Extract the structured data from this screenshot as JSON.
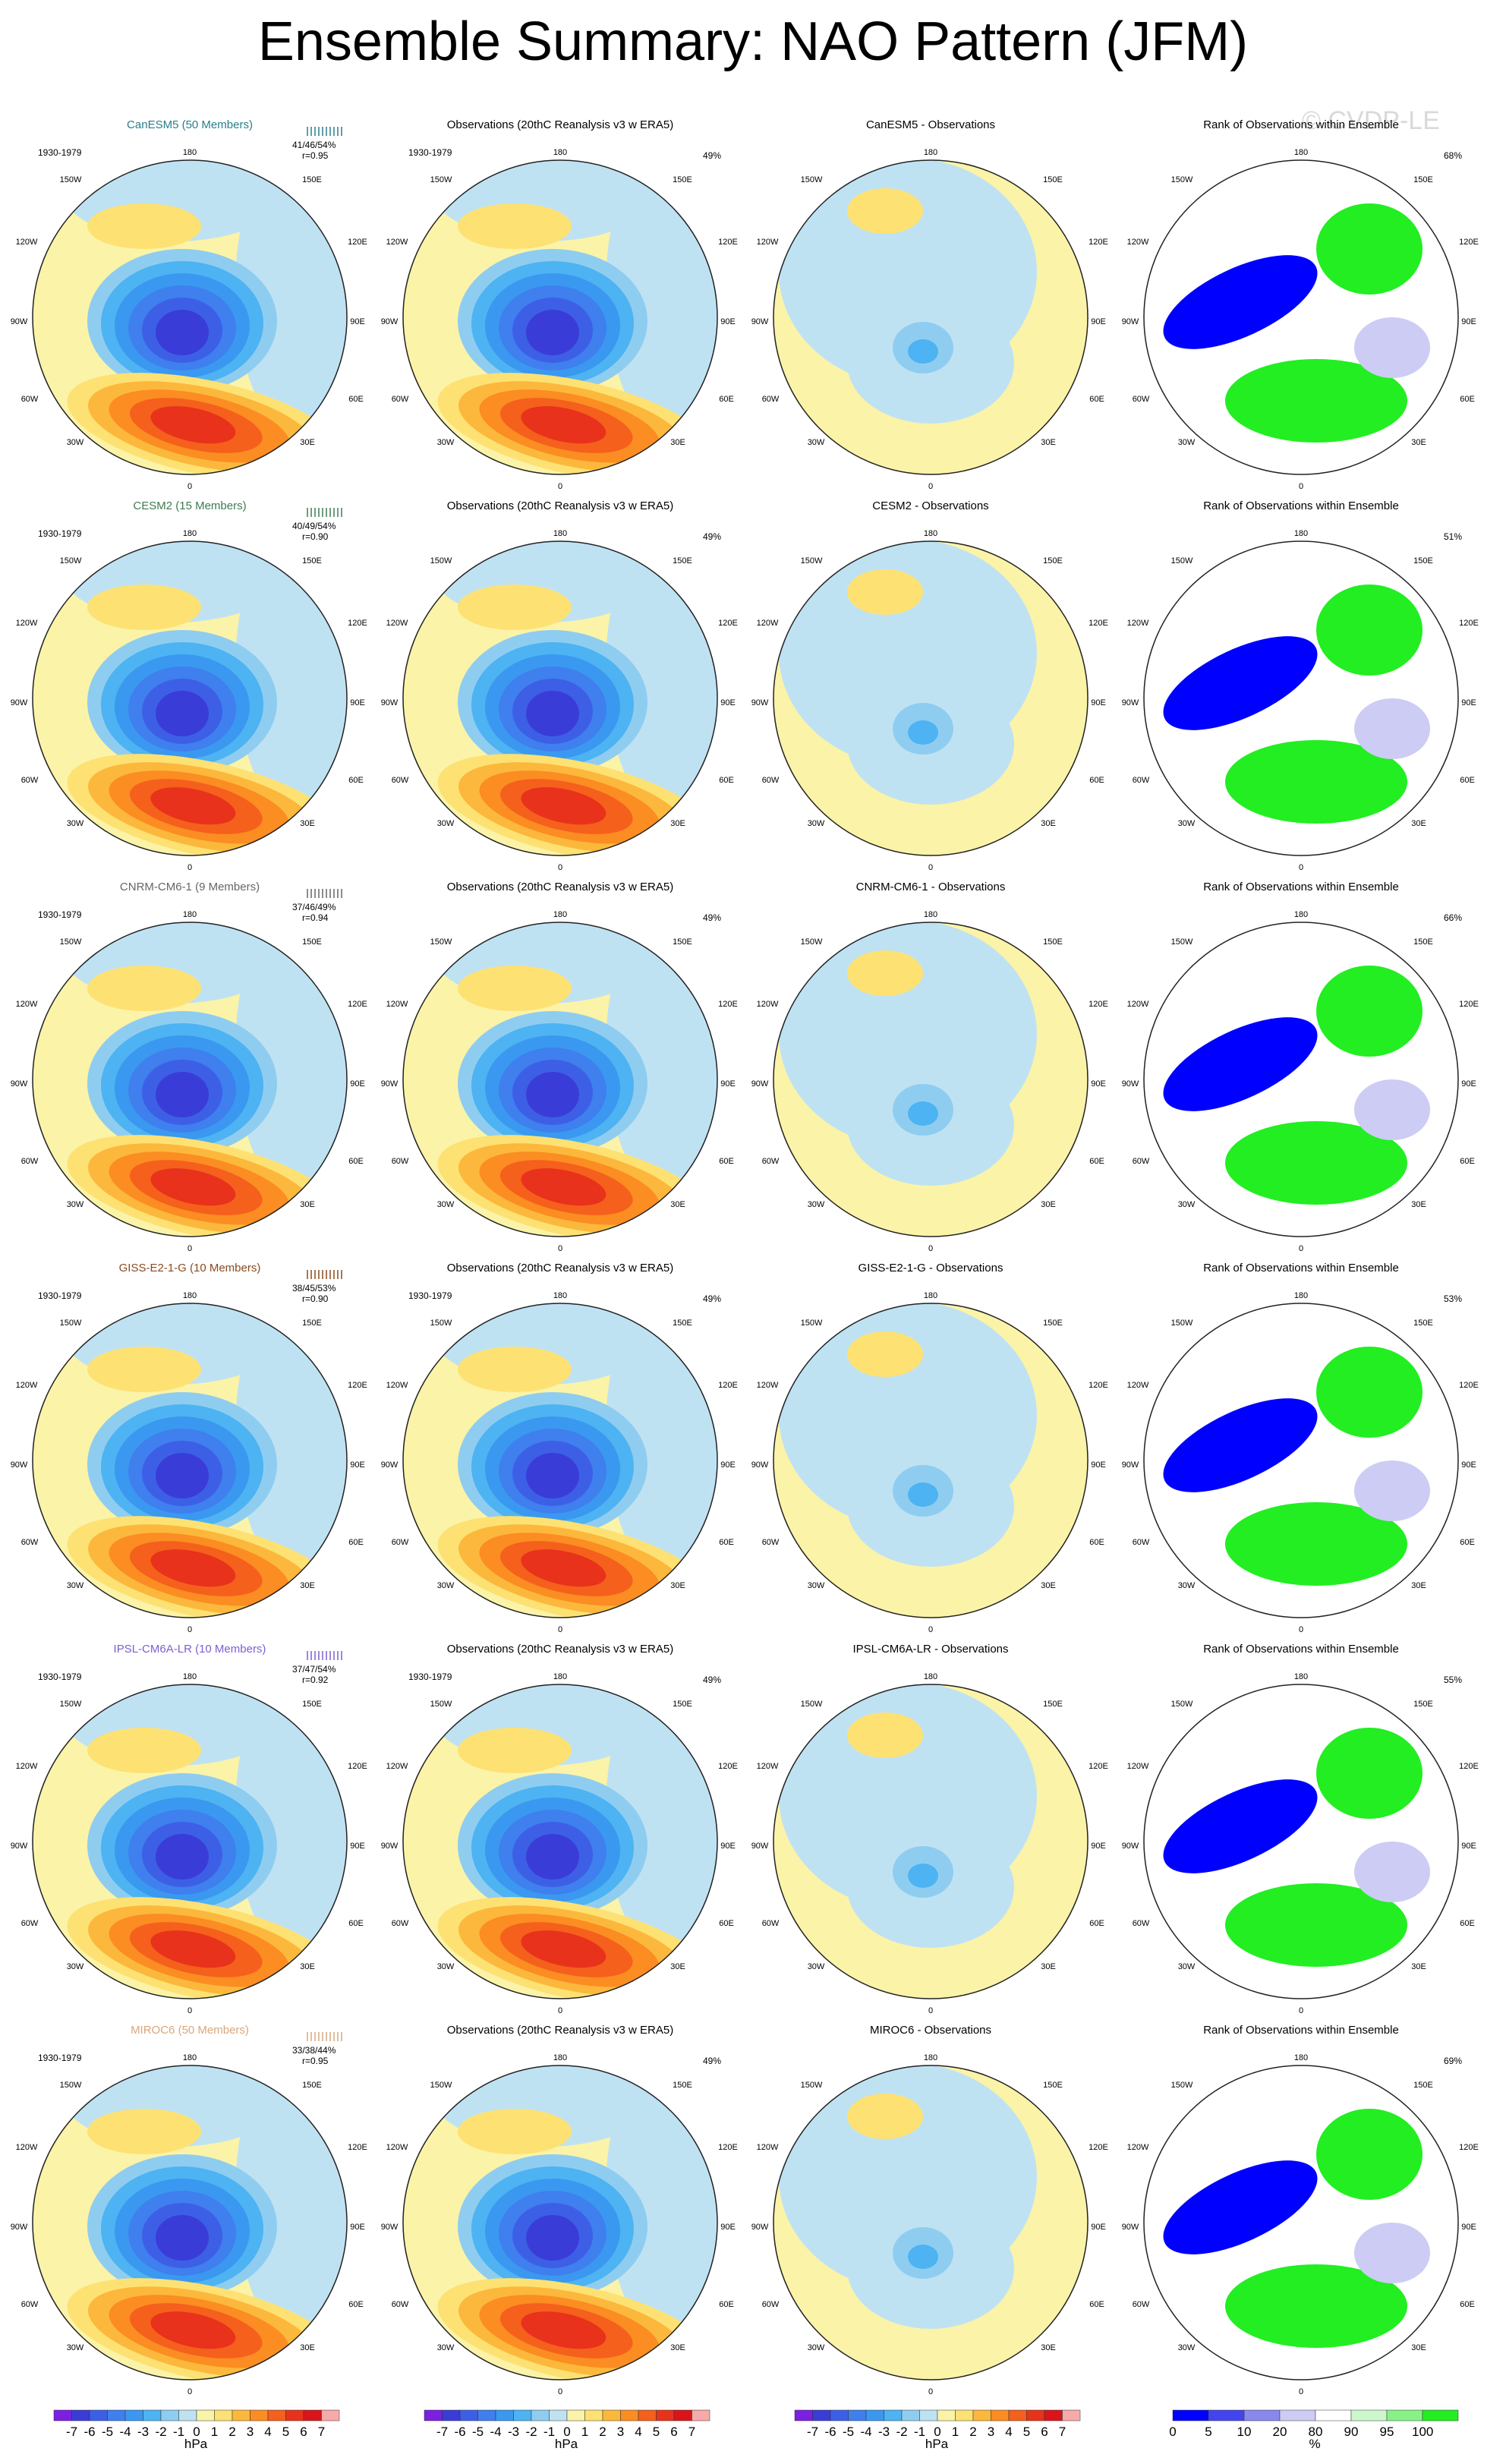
{
  "title": "Ensemble Summary: NAO Pattern (JFM)",
  "watermark": "© CVDP-LE",
  "period": "1930-1979",
  "obs_title": "Observations (20thC Reanalysis v3 w ERA5)",
  "obs_pct": "49%",
  "rank_title": "Rank of Observations within Ensemble",
  "lon_labels": {
    "n": "180",
    "nw": "150W",
    "ne": "150E",
    "wnw": "120W",
    "ene": "120E",
    "w": "90W",
    "e": "90E",
    "wsw": "60W",
    "ese": "60E",
    "sw": "30W",
    "se": "30E",
    "s": "0"
  },
  "rows": [
    {
      "model": "CanESM5 (50 Members)",
      "color": "#2a7d8c",
      "stats": "41/46/54%",
      "r": "r=0.95",
      "diff_title": "CanESM5 - Observations",
      "rank_pct": "68%"
    },
    {
      "model": "CESM2 (15 Members)",
      "color": "#3f7a52",
      "stats": "40/49/54%",
      "r": "r=0.90",
      "diff_title": "CESM2 - Observations",
      "rank_pct": "51%"
    },
    {
      "model": "CNRM-CM6-1 (9 Members)",
      "color": "#666666",
      "stats": "37/46/49%",
      "r": "r=0.94",
      "diff_title": "CNRM-CM6-1 - Observations",
      "rank_pct": "66%"
    },
    {
      "model": "GISS-E2-1-G (10 Members)",
      "color": "#8a4a1e",
      "stats": "38/45/53%",
      "r": "r=0.90",
      "diff_title": "GISS-E2-1-G - Observations",
      "rank_pct": "53%"
    },
    {
      "model": "IPSL-CM6A-LR (10 Members)",
      "color": "#7c5fd0",
      "stats": "37/47/54%",
      "r": "r=0.92",
      "diff_title": "IPSL-CM6A-LR - Observations",
      "rank_pct": "55%"
    },
    {
      "model": "MIROC6 (50 Members)",
      "color": "#d9a77c",
      "stats": "33/38/44%",
      "r": "r=0.95",
      "diff_title": "MIROC6 - Observations",
      "rank_pct": "69%"
    }
  ],
  "colorbar_hpa": {
    "ticks": [
      "-7",
      "-6",
      "-5",
      "-4",
      "-3",
      "-2",
      "-1",
      "0",
      "1",
      "2",
      "3",
      "4",
      "5",
      "6",
      "7"
    ],
    "unit": "hPa",
    "colors": [
      "#7b1fe0",
      "#3a3cd8",
      "#3d5fe6",
      "#3f7fee",
      "#3a98f0",
      "#4db3f2",
      "#8fcdf0",
      "#bfe2f3",
      "#fbf3a8",
      "#fde173",
      "#fcb83c",
      "#fb8d22",
      "#f5601c",
      "#e8321b",
      "#d9151b",
      "#f7aaaa"
    ]
  },
  "colorbar_rank": {
    "ticks": [
      "0",
      "5",
      "10",
      "20",
      "80",
      "90",
      "95",
      "100"
    ],
    "unit": "%",
    "colors": [
      "#0000ff",
      "#4444ee",
      "#8888ee",
      "#ccccf5",
      "#ffffff",
      "#cdf7cd",
      "#88f288",
      "#22ee22"
    ]
  }
}
